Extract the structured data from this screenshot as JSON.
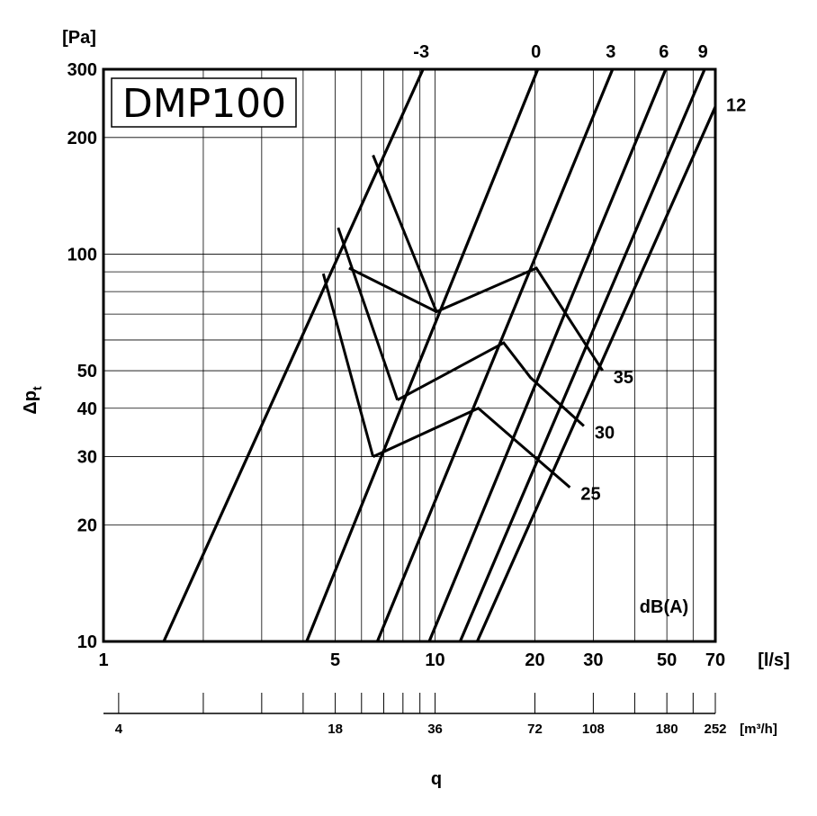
{
  "chart_data": {
    "type": "line",
    "title": "DMP100",
    "x_axis": {
      "label": "q",
      "unit": "[l/s]",
      "scale": "log",
      "range": [
        1,
        70
      ],
      "tick_labels": [
        "1",
        "5",
        "10",
        "20",
        "30",
        "50",
        "70"
      ],
      "tick_values": [
        1,
        5,
        10,
        20,
        30,
        50,
        70
      ],
      "grid_values": [
        1,
        2,
        3,
        4,
        5,
        6,
        7,
        8,
        9,
        10,
        20,
        30,
        40,
        50,
        60,
        70
      ]
    },
    "secondary_x_axis": {
      "unit": "[m³/h]",
      "tick_labels": [
        "4",
        "18",
        "36",
        "72",
        "108",
        "180",
        "252"
      ],
      "tick_values": [
        4,
        18,
        36,
        72,
        108,
        180,
        252
      ],
      "minor_tick_values": [
        4,
        7.2,
        10.8,
        14.4,
        18,
        21.6,
        25.2,
        28.8,
        32.4,
        36,
        72,
        108,
        144,
        180,
        216,
        252
      ]
    },
    "y_axis": {
      "label": "Δp",
      "label_subscript": "t",
      "unit": "[Pa]",
      "scale": "log",
      "range": [
        10,
        300
      ],
      "tick_labels": [
        "10",
        "20",
        "30",
        "40",
        "50",
        "100",
        "200",
        "300"
      ],
      "tick_values": [
        10,
        20,
        30,
        40,
        50,
        100,
        200,
        300
      ],
      "grid_values": [
        10,
        20,
        30,
        40,
        50,
        60,
        70,
        80,
        90,
        100,
        200,
        300
      ]
    },
    "grid": true,
    "damper_lines": {
      "description_label": "",
      "series": [
        {
          "name": "-3",
          "points": [
            [
              1.52,
              10
            ],
            [
              9.2,
              300
            ]
          ]
        },
        {
          "name": "0",
          "points": [
            [
              4.1,
              10
            ],
            [
              20.4,
              300
            ]
          ]
        },
        {
          "name": "3",
          "points": [
            [
              6.7,
              10
            ],
            [
              34.3,
              300
            ]
          ]
        },
        {
          "name": "6",
          "points": [
            [
              9.6,
              10
            ],
            [
              49.6,
              300
            ]
          ]
        },
        {
          "name": "9",
          "points": [
            [
              11.9,
              10
            ],
            [
              65.0,
              300
            ]
          ]
        },
        {
          "name": "12",
          "points": [
            [
              13.4,
              10
            ],
            [
              70.0,
              240
            ]
          ]
        }
      ]
    },
    "noise_curves": {
      "unit_label": "dB(A)",
      "series": [
        {
          "name": "25",
          "points": [
            [
              6.5,
              30
            ],
            [
              13.5,
              40
            ],
            [
              17.5,
              33
            ],
            [
              25.5,
              25
            ]
          ]
        },
        {
          "name": "30",
          "points": [
            [
              7.7,
              42
            ],
            [
              16.1,
              59
            ],
            [
              19.4,
              48
            ],
            [
              28.1,
              36
            ]
          ]
        },
        {
          "name": "35",
          "points": [
            [
              5.5,
              92
            ],
            [
              10.1,
              71
            ],
            [
              20.2,
              92
            ],
            [
              32.0,
              50
            ]
          ]
        }
      ]
    },
    "crossover_lines": [
      {
        "points": [
          [
            4.6,
            89
          ],
          [
            6.5,
            30
          ]
        ]
      },
      {
        "points": [
          [
            5.1,
            117
          ],
          [
            7.7,
            42
          ]
        ]
      },
      {
        "points": [
          [
            6.5,
            180
          ],
          [
            10.1,
            71
          ]
        ]
      }
    ]
  }
}
